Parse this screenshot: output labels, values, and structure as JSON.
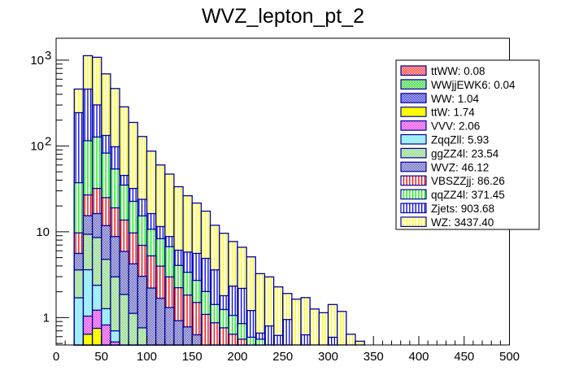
{
  "chart_data": {
    "type": "bar",
    "stacked": true,
    "title": "WVZ_lepton_pt_2",
    "xlabel": "",
    "ylabel": "",
    "xlim": [
      0,
      500
    ],
    "ylim": [
      0.48,
      1800
    ],
    "yscale": "log",
    "bin_width": 10,
    "x_ticks": [
      0,
      50,
      100,
      150,
      200,
      250,
      300,
      350,
      400,
      450,
      500
    ],
    "y_ticks": [
      {
        "value": 1,
        "label": "1"
      },
      {
        "value": 10,
        "label": "10"
      },
      {
        "value": 100,
        "label": "10",
        "sup": "2"
      },
      {
        "value": 1000,
        "label": "10",
        "sup": "3"
      }
    ],
    "legend_position": "top-right",
    "bin_lower_edges": [
      20,
      30,
      40,
      50,
      60,
      70,
      80,
      90,
      100,
      110,
      120,
      130,
      140,
      150,
      160,
      170,
      180,
      190,
      200,
      210,
      220,
      230,
      240,
      250,
      260,
      270,
      280,
      290,
      300,
      310,
      320,
      330
    ],
    "series": [
      {
        "name": "ttWW",
        "legend": "ttWW: 0.08",
        "fill": "#ff0000",
        "line": "#000099",
        "pattern": "checker",
        "values": [
          0,
          0,
          0,
          0,
          0,
          0,
          0,
          0,
          0,
          0,
          0,
          0,
          0,
          0,
          0,
          0,
          0,
          0,
          0,
          0,
          0,
          0,
          0,
          0,
          0,
          0,
          0,
          0,
          0,
          0,
          0,
          0
        ]
      },
      {
        "name": "WWjjEWK6",
        "legend": "WWjjEWK6: 0.04",
        "fill": "#00cc00",
        "line": "#000099",
        "pattern": "checker",
        "values": [
          0,
          0,
          0,
          0,
          0,
          0,
          0,
          0,
          0,
          0,
          0,
          0,
          0,
          0,
          0,
          0,
          0,
          0,
          0,
          0,
          0,
          0,
          0,
          0,
          0,
          0,
          0,
          0,
          0,
          0,
          0,
          0
        ]
      },
      {
        "name": "WW",
        "legend": "WW: 1.04",
        "fill": "#0000cc",
        "line": "#000099",
        "pattern": "checker",
        "values": [
          0,
          0,
          0,
          0,
          0,
          0,
          0,
          0,
          0,
          0,
          0,
          0,
          0,
          0,
          0,
          0,
          0,
          0,
          0,
          0,
          0,
          0,
          0,
          0,
          0,
          0,
          0,
          0,
          0,
          0,
          0,
          0
        ]
      },
      {
        "name": "ttW",
        "legend": "ttW: 1.74",
        "fill": "#ffff00",
        "line": "#000099",
        "pattern": "solid",
        "values": [
          0,
          0.64,
          0.75,
          0,
          0,
          0,
          0,
          0,
          0,
          0,
          0,
          0,
          0,
          0,
          0,
          0,
          0,
          0,
          0,
          0,
          0,
          0,
          0,
          0,
          0,
          0,
          0,
          0,
          0,
          0,
          0,
          0
        ]
      },
      {
        "name": "VVV",
        "legend": "VVV: 2.06",
        "fill": "#dd00dd",
        "line": "#000099",
        "pattern": "checker",
        "values": [
          0,
          0.4,
          0.47,
          0.82,
          0.52,
          0,
          0,
          0,
          0,
          0,
          0,
          0,
          0,
          0,
          0,
          0,
          0,
          0,
          0,
          0,
          0,
          0,
          0,
          0,
          0,
          0,
          0,
          0,
          0,
          0,
          0,
          0
        ]
      },
      {
        "name": "ZqqZll",
        "legend": "ZqqZll: 5.93",
        "fill": "#44ddee",
        "line": "#000099",
        "pattern": "checker",
        "values": [
          1.7,
          2.57,
          1.16,
          0.45,
          0.18,
          0,
          0,
          0,
          0,
          0,
          0,
          0,
          0,
          0,
          0,
          0,
          0,
          0,
          0,
          0,
          0,
          0,
          0,
          0,
          0,
          0,
          0,
          0,
          0,
          0,
          0,
          0
        ]
      },
      {
        "name": "ggZZ4l",
        "legend": "ggZZ4l: 23.54",
        "fill": "#66cc55",
        "line": "#000099",
        "pattern": "checker",
        "values": [
          1.89,
          5.74,
          6.19,
          3.5,
          2.28,
          1.86,
          1.12,
          0.76,
          0,
          0,
          0,
          0,
          0,
          0,
          0,
          0,
          0,
          0,
          0,
          0,
          0,
          0,
          0,
          0,
          0,
          0,
          0,
          0,
          0,
          0,
          0,
          0
        ]
      },
      {
        "name": "WVZ",
        "legend": "WVZ: 46.12",
        "fill": "#3333aa",
        "line": "#000099",
        "pattern": "checker",
        "values": [
          2.01,
          6.05,
          7.73,
          7.03,
          5.82,
          4.04,
          3.11,
          2.27,
          2.21,
          1.68,
          1.31,
          0.92,
          0.78,
          0.63,
          0,
          0,
          0,
          0,
          0,
          0,
          0,
          0,
          0,
          0,
          0,
          0,
          0,
          0,
          0,
          0,
          0,
          0
        ]
      },
      {
        "name": "VBSZZjj",
        "legend": "VBSZZjj: 86.26",
        "fill": "#ee0000",
        "line": "#000099",
        "pattern": "vlines",
        "values": [
          4.1,
          11.5,
          15.7,
          13.2,
          10.2,
          7.8,
          5.47,
          3.92,
          3.03,
          2.3,
          1.67,
          1.31,
          1.05,
          0.87,
          1.09,
          0.87,
          0.76,
          0.64,
          0.56,
          0,
          0,
          0,
          0,
          0,
          0,
          0,
          0,
          0,
          0,
          0,
          0,
          0
        ]
      },
      {
        "name": "qqZZ4l",
        "legend": "qqZZ4l: 371.45",
        "fill": "#00ee00",
        "line": "#000099",
        "pattern": "vlines",
        "values": [
          27.6,
          88.1,
          95,
          57.6,
          34.9,
          21.3,
          12.9,
          8.35,
          5.46,
          4.32,
          3.72,
          1.82,
          1.54,
          1.21,
          0.92,
          0.55,
          0.48,
          0.42,
          0.29,
          0.59,
          0.56,
          0,
          0,
          0,
          0,
          0,
          0,
          0,
          0,
          0,
          0,
          0
        ]
      },
      {
        "name": "Zjets",
        "legend": "Zjets: 903.68",
        "fill": "#0000dd",
        "line": "#000099",
        "pattern": "vlines",
        "values": [
          207,
          345,
          174,
          50,
          44,
          10.4,
          9.4,
          8.6,
          5.6,
          3.2,
          2.1,
          2.05,
          2.43,
          2.89,
          2.89,
          2.18,
          0.56,
          1.27,
          1.34,
          0.62,
          0.1,
          0.8,
          0.62,
          0.95,
          0,
          0.63,
          0,
          0,
          0.59,
          0,
          0,
          0
        ]
      },
      {
        "name": "WZ",
        "legend": "WZ: 3437.40",
        "fill": "#ffff00",
        "line": "#000099",
        "pattern": "vlines",
        "values": [
          216,
          667,
          779,
          559,
          369,
          240,
          156,
          105,
          70.7,
          48.5,
          38.2,
          27.4,
          20.5,
          16,
          12.5,
          8.3,
          7.8,
          5.37,
          4.41,
          3.89,
          2.59,
          2.18,
          1.66,
          0.96,
          1.64,
          1.08,
          1.26,
          1.14,
          0.83,
          1.18,
          0.64,
          0.53
        ]
      }
    ]
  }
}
